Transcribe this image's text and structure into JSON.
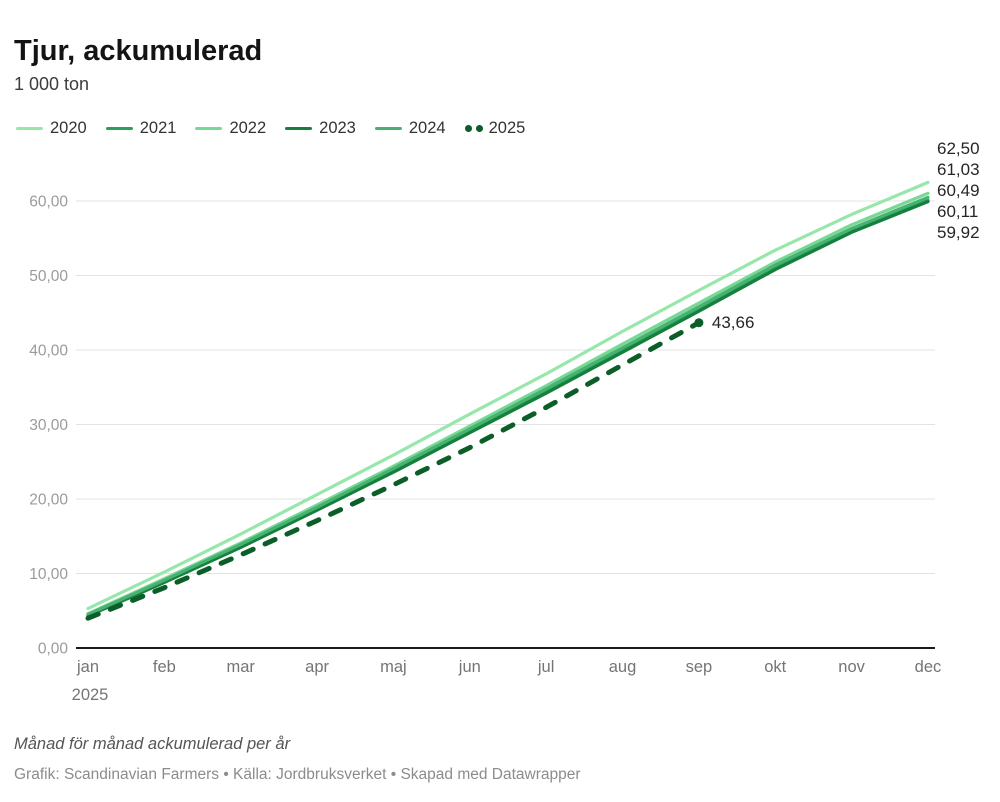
{
  "header": {
    "title": "Tjur, ackumulerad",
    "subtitle": "1 000 ton"
  },
  "chart_data": {
    "type": "line",
    "title": "Tjur, ackumulerad",
    "unit_label": "1 000 ton",
    "grid": "horizontal",
    "legend_position": "top",
    "ylim": [
      0,
      65
    ],
    "yticks": [
      {
        "value": 0,
        "label": "0,00"
      },
      {
        "value": 10,
        "label": "10,00"
      },
      {
        "value": 20,
        "label": "20,00"
      },
      {
        "value": 30,
        "label": "30,00"
      },
      {
        "value": 40,
        "label": "40,00"
      },
      {
        "value": 50,
        "label": "50,00"
      },
      {
        "value": 60,
        "label": "60,00"
      }
    ],
    "x": [
      "jan",
      "feb",
      "mar",
      "apr",
      "maj",
      "jun",
      "jul",
      "aug",
      "sep",
      "okt",
      "nov",
      "dec"
    ],
    "x_sub_label": {
      "index": 0,
      "label": "2025"
    },
    "series": [
      {
        "name": "2020",
        "color": "#97e7ab",
        "dashed": false,
        "end_label": "62,50",
        "values": [
          5.3,
          10.2,
          15.3,
          20.6,
          25.9,
          31.4,
          36.8,
          42.5,
          48.0,
          53.4,
          58.2,
          62.5
        ]
      },
      {
        "name": "2021",
        "color": "#2aa05e",
        "dashed": false,
        "end_label": "60,11",
        "values": [
          4.4,
          9.0,
          13.7,
          18.7,
          23.8,
          29.1,
          34.5,
          40.0,
          45.5,
          51.0,
          56.0,
          60.11
        ]
      },
      {
        "name": "2022",
        "color": "#77d993",
        "dashed": false,
        "end_label": "61,03",
        "values": [
          4.6,
          9.3,
          14.1,
          19.2,
          24.4,
          29.8,
          35.2,
          40.8,
          46.3,
          51.8,
          56.8,
          61.03
        ]
      },
      {
        "name": "2023",
        "color": "#15803c",
        "dashed": false,
        "end_label": "59,92",
        "values": [
          4.3,
          8.8,
          13.5,
          18.5,
          23.6,
          28.9,
          34.2,
          39.7,
          45.2,
          50.8,
          55.8,
          59.92
        ]
      },
      {
        "name": "2024",
        "color": "#48b173",
        "dashed": false,
        "end_label": "60,49",
        "values": [
          4.5,
          9.1,
          13.9,
          18.9,
          24.1,
          29.4,
          34.8,
          40.3,
          45.8,
          51.4,
          56.3,
          60.49
        ]
      },
      {
        "name": "2025",
        "color": "#0b5e27",
        "dashed": true,
        "end_dot": true,
        "end_label": "43,66",
        "values": [
          4.0,
          8.1,
          12.5,
          17.1,
          21.9,
          26.9,
          32.3,
          38.0,
          43.66
        ]
      }
    ],
    "colors": {
      "grid": "#e3e3e3",
      "baseline": "#1a1a1a",
      "ytick_text": "#9b9b9b",
      "xtick_text": "#757575",
      "end_label_text": "#262626"
    }
  },
  "footer": {
    "note": "Månad för månad ackumulerad per år",
    "credit": "Grafik: Scandinavian Farmers • Källa: Jordbruksverket • Skapad med Datawrapper"
  }
}
